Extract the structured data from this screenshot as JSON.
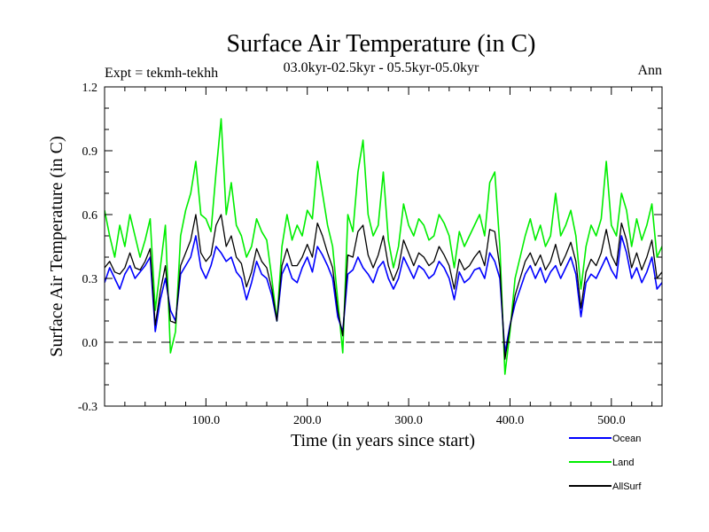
{
  "chart_data": {
    "type": "line",
    "title": "Surface Air Temperature (in C)",
    "subtitle_left": "Expt = tekmh-tekhh",
    "subtitle_center": "03.0kyr-02.5kyr - 05.5kyr-05.0kyr",
    "subtitle_right": "Ann",
    "xlabel": "Time (in years since start)",
    "ylabel": "Surface Air Temperature (in C)",
    "xlim": [
      0,
      550
    ],
    "ylim": [
      -0.3,
      1.2
    ],
    "x_ticks": [
      100,
      200,
      300,
      400,
      500
    ],
    "x_tick_labels": [
      "100.0",
      "200.0",
      "300.0",
      "400.0",
      "500.0"
    ],
    "y_ticks": [
      -0.3,
      0.0,
      0.3,
      0.6,
      0.9,
      1.2
    ],
    "y_tick_labels": [
      "-0.3",
      "0.0",
      "0.3",
      "0.6",
      "0.9",
      "1.2"
    ],
    "reference_line": {
      "y": 0.0,
      "style": "dashed"
    },
    "legend_position": "bottom-right",
    "series": [
      {
        "name": "Ocean",
        "color": "#0000ff",
        "x_step": 5,
        "values": [
          0.28,
          0.35,
          0.3,
          0.25,
          0.32,
          0.36,
          0.3,
          0.33,
          0.36,
          0.4,
          0.05,
          0.2,
          0.3,
          0.15,
          0.1,
          0.32,
          0.36,
          0.4,
          0.5,
          0.35,
          0.3,
          0.36,
          0.45,
          0.42,
          0.38,
          0.4,
          0.33,
          0.3,
          0.2,
          0.28,
          0.38,
          0.32,
          0.3,
          0.22,
          0.1,
          0.32,
          0.37,
          0.3,
          0.28,
          0.35,
          0.4,
          0.33,
          0.45,
          0.41,
          0.36,
          0.3,
          0.12,
          0.05,
          0.32,
          0.34,
          0.4,
          0.35,
          0.32,
          0.28,
          0.35,
          0.38,
          0.3,
          0.25,
          0.3,
          0.4,
          0.35,
          0.3,
          0.36,
          0.34,
          0.3,
          0.32,
          0.38,
          0.35,
          0.3,
          0.2,
          0.33,
          0.28,
          0.3,
          0.34,
          0.35,
          0.3,
          0.42,
          0.38,
          0.3,
          -0.05,
          0.08,
          0.18,
          0.25,
          0.32,
          0.36,
          0.3,
          0.35,
          0.28,
          0.33,
          0.36,
          0.3,
          0.35,
          0.4,
          0.32,
          0.12,
          0.28,
          0.32,
          0.3,
          0.35,
          0.4,
          0.34,
          0.3,
          0.5,
          0.42,
          0.3,
          0.35,
          0.28,
          0.33,
          0.4,
          0.25,
          0.28,
          0.3
        ]
      },
      {
        "name": "Land",
        "color": "#00ee00",
        "x_step": 5,
        "values": [
          0.62,
          0.5,
          0.4,
          0.55,
          0.45,
          0.6,
          0.5,
          0.4,
          0.48,
          0.58,
          0.15,
          0.35,
          0.55,
          -0.05,
          0.05,
          0.5,
          0.62,
          0.7,
          0.85,
          0.6,
          0.58,
          0.52,
          0.8,
          1.05,
          0.6,
          0.75,
          0.55,
          0.5,
          0.4,
          0.45,
          0.58,
          0.52,
          0.48,
          0.3,
          0.1,
          0.45,
          0.6,
          0.48,
          0.55,
          0.5,
          0.62,
          0.58,
          0.85,
          0.7,
          0.55,
          0.45,
          0.2,
          -0.05,
          0.6,
          0.52,
          0.8,
          0.95,
          0.6,
          0.5,
          0.55,
          0.8,
          0.48,
          0.35,
          0.45,
          0.65,
          0.55,
          0.5,
          0.58,
          0.55,
          0.48,
          0.5,
          0.6,
          0.56,
          0.5,
          0.35,
          0.52,
          0.45,
          0.5,
          0.55,
          0.6,
          0.5,
          0.75,
          0.8,
          0.45,
          -0.15,
          0.05,
          0.3,
          0.4,
          0.5,
          0.58,
          0.48,
          0.55,
          0.45,
          0.5,
          0.7,
          0.5,
          0.55,
          0.62,
          0.5,
          0.25,
          0.45,
          0.55,
          0.5,
          0.58,
          0.85,
          0.55,
          0.5,
          0.7,
          0.62,
          0.45,
          0.58,
          0.48,
          0.55,
          0.65,
          0.4,
          0.45,
          0.5
        ]
      },
      {
        "name": "AllSurf",
        "color": "#000000",
        "x_step": 5,
        "values": [
          0.35,
          0.38,
          0.33,
          0.32,
          0.35,
          0.42,
          0.35,
          0.34,
          0.38,
          0.44,
          0.08,
          0.24,
          0.36,
          0.1,
          0.09,
          0.36,
          0.42,
          0.48,
          0.6,
          0.42,
          0.38,
          0.41,
          0.55,
          0.6,
          0.45,
          0.5,
          0.4,
          0.37,
          0.26,
          0.33,
          0.44,
          0.38,
          0.35,
          0.25,
          0.1,
          0.36,
          0.44,
          0.36,
          0.36,
          0.4,
          0.46,
          0.4,
          0.56,
          0.5,
          0.42,
          0.35,
          0.15,
          0.03,
          0.41,
          0.4,
          0.52,
          0.55,
          0.41,
          0.35,
          0.41,
          0.5,
          0.36,
          0.29,
          0.35,
          0.48,
          0.42,
          0.36,
          0.42,
          0.4,
          0.36,
          0.38,
          0.45,
          0.41,
          0.36,
          0.25,
          0.39,
          0.34,
          0.36,
          0.4,
          0.43,
          0.36,
          0.53,
          0.52,
          0.35,
          -0.08,
          0.07,
          0.22,
          0.3,
          0.38,
          0.42,
          0.36,
          0.41,
          0.34,
          0.38,
          0.46,
          0.36,
          0.41,
          0.47,
          0.38,
          0.16,
          0.33,
          0.39,
          0.36,
          0.42,
          0.53,
          0.41,
          0.36,
          0.56,
          0.48,
          0.35,
          0.42,
          0.34,
          0.4,
          0.48,
          0.3,
          0.33,
          0.36
        ]
      }
    ]
  }
}
